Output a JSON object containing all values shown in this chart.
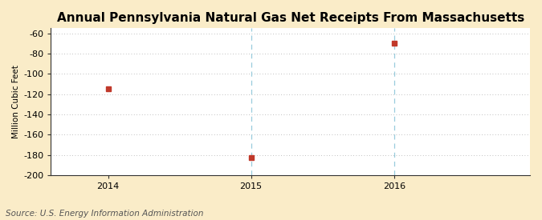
{
  "title": "Annual Pennsylvania Natural Gas Net Receipts From Massachusetts",
  "ylabel": "Million Cubic Feet",
  "source": "Source: U.S. Energy Information Administration",
  "x": [
    2014,
    2015,
    2016
  ],
  "y": [
    -115,
    -183,
    -70
  ],
  "xlim": [
    2013.6,
    2016.95
  ],
  "ylim": [
    -200,
    -55
  ],
  "yticks": [
    -200,
    -180,
    -160,
    -140,
    -120,
    -100,
    -80,
    -60
  ],
  "xticks": [
    2014,
    2015,
    2016
  ],
  "vlines": [
    2015,
    2016
  ],
  "marker_color": "#c0392b",
  "marker": "s",
  "marker_size": 4,
  "figure_bg": "#faecc8",
  "axes_bg": "#ffffff",
  "hgrid_color": "#aaaaaa",
  "vline_color": "#99ccdd",
  "spine_color": "#333333",
  "title_fontsize": 11,
  "ylabel_fontsize": 7.5,
  "tick_fontsize": 8,
  "source_fontsize": 7.5
}
